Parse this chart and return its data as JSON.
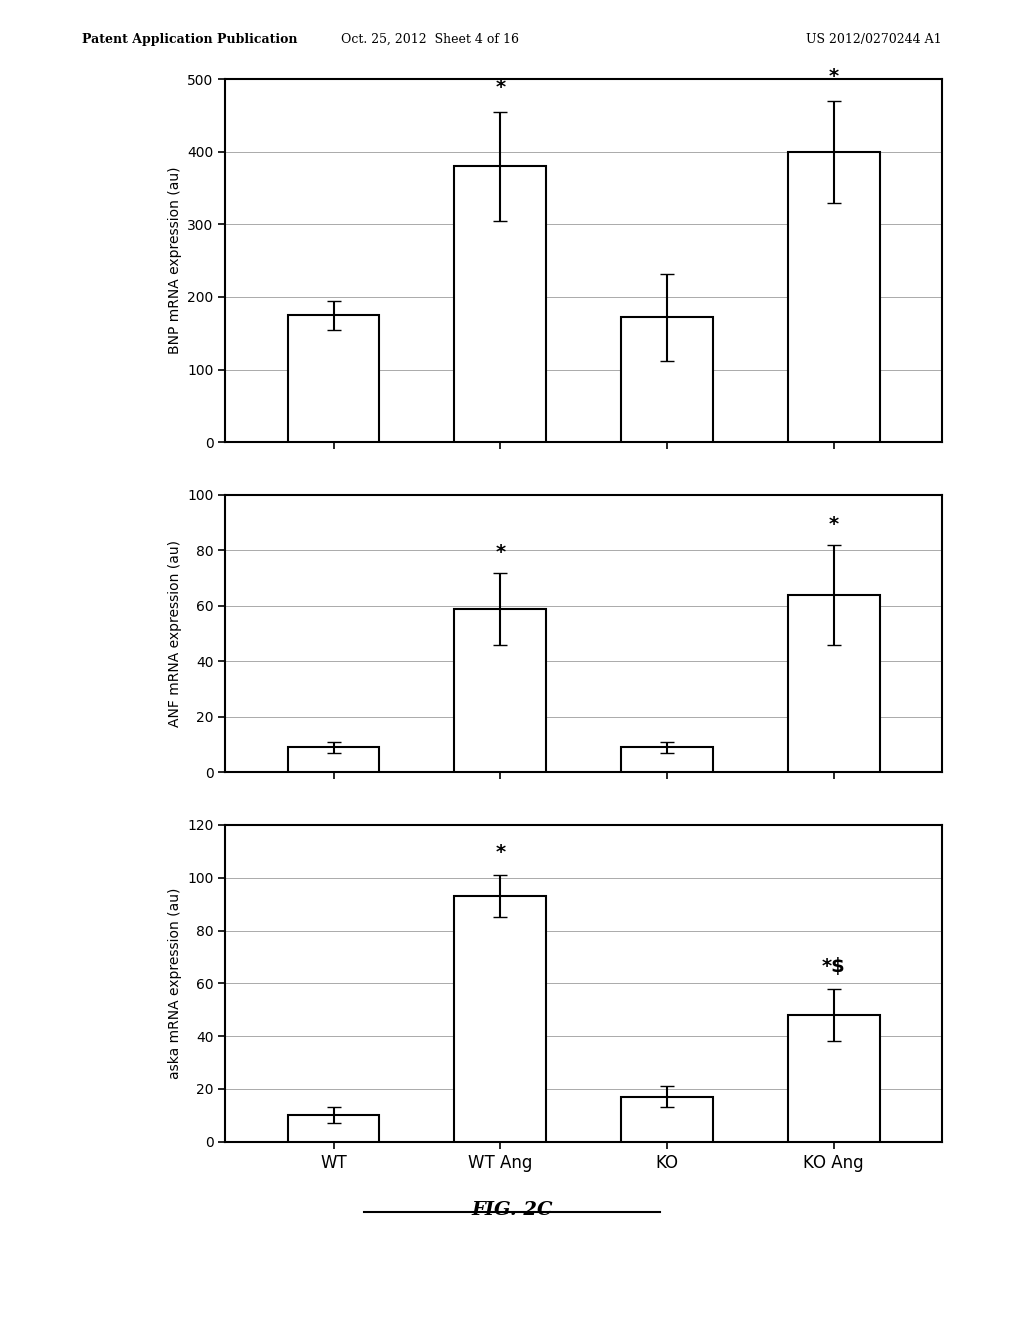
{
  "header_left": "Patent Application Publication",
  "header_mid": "Oct. 25, 2012  Sheet 4 of 16",
  "header_right": "US 2012/0270244 A1",
  "figure_label": "FIG. 2C",
  "categories": [
    "WT",
    "WT Ang",
    "KO",
    "KO Ang"
  ],
  "chart1": {
    "ylabel": "BNP mRNA expression (au)",
    "ylim": [
      0,
      500
    ],
    "yticks": [
      0,
      100,
      200,
      300,
      400,
      500
    ],
    "values": [
      175,
      380,
      172,
      400
    ],
    "errors": [
      20,
      75,
      60,
      70
    ],
    "sig_markers": [
      "",
      "*",
      "",
      "*"
    ]
  },
  "chart2": {
    "ylabel": "ANF mRNA expression (au)",
    "ylim": [
      0,
      100
    ],
    "yticks": [
      0,
      20,
      40,
      60,
      80,
      100
    ],
    "values": [
      9,
      59,
      9,
      64
    ],
    "errors": [
      2,
      13,
      2,
      18
    ],
    "sig_markers": [
      "",
      "*",
      "",
      "*"
    ]
  },
  "chart3": {
    "ylabel": "aska mRNA expression (au)",
    "ylim": [
      0,
      120
    ],
    "yticks": [
      0,
      20,
      40,
      60,
      80,
      100,
      120
    ],
    "values": [
      10,
      93,
      17,
      48
    ],
    "errors": [
      3,
      8,
      4,
      10
    ],
    "sig_markers": [
      "",
      "*",
      "",
      "*$"
    ]
  },
  "bar_color": "#ffffff",
  "bar_edgecolor": "#000000",
  "bar_width": 0.55,
  "background_color": "#ffffff",
  "text_color": "#000000",
  "grid_color": "#aaaaaa",
  "fontsize_ylabel": 10,
  "fontsize_ticks": 10,
  "fontsize_xticklabels": 12,
  "fontsize_sig": 14,
  "fontsize_header": 9,
  "fontsize_figlabel": 14
}
